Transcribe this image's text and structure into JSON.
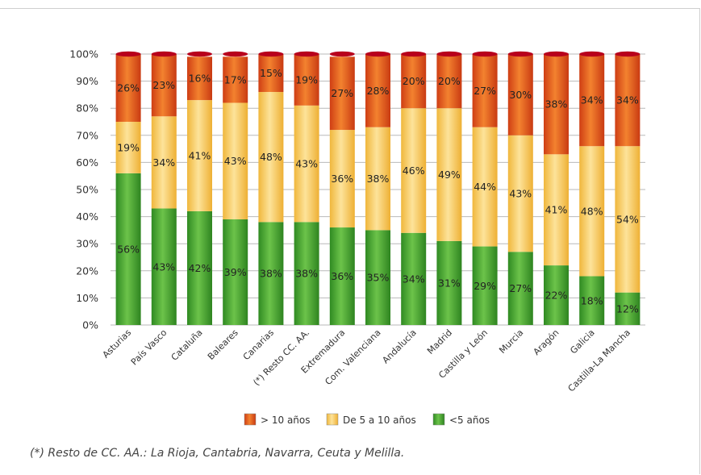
{
  "chart_data": {
    "type": "bar",
    "stacked": true,
    "categories": [
      "Asturias",
      "País Vasco",
      "Cataluña",
      "Baleares",
      "Canarias",
      "(*) Resto CC. AA.",
      "Extremadura",
      "Com. Valenciana",
      "Andalucía",
      "Madrid",
      "Castilla y León",
      "Murcia",
      "Aragón",
      "Galicia",
      "Castilla-La Mancha"
    ],
    "series": [
      {
        "name": "<5 años",
        "color": "#3e9f2c",
        "values": [
          56,
          43,
          42,
          39,
          38,
          38,
          36,
          35,
          34,
          31,
          29,
          27,
          22,
          18,
          12
        ]
      },
      {
        "name": "De 5 a 10 años",
        "color": "#f7c04a",
        "values": [
          19,
          34,
          41,
          43,
          48,
          43,
          36,
          38,
          46,
          49,
          44,
          43,
          41,
          48,
          54
        ]
      },
      {
        "name": "> 10 años",
        "color": "#e0541b",
        "values": [
          26,
          23,
          16,
          17,
          15,
          19,
          27,
          28,
          20,
          20,
          27,
          30,
          38,
          34,
          34
        ]
      }
    ],
    "legend_order": [
      "> 10 años",
      "De 5 a 10 años",
      "<5 años"
    ],
    "legend_placement": "bottom",
    "yticks": [
      "0%",
      "10%",
      "20%",
      "30%",
      "40%",
      "50%",
      "60%",
      "70%",
      "80%",
      "90%",
      "100%"
    ],
    "ylim": [
      0,
      100
    ],
    "grid": true
  },
  "footnote": "(*) Resto de CC. AA.: La Rioja, Cantabria, Navarra, Ceuta y Melilla."
}
